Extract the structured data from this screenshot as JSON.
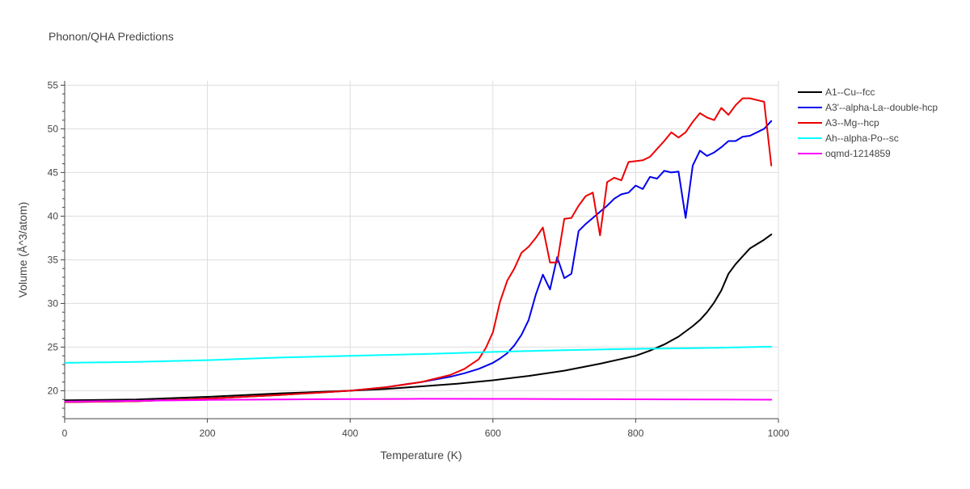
{
  "chart_data": {
    "type": "line",
    "title": "Phonon/QHA Predictions",
    "xlabel": "Temperature (K)",
    "ylabel": "Volume (Å^3/atom)",
    "xlim": [
      0,
      1000
    ],
    "ylim": [
      16.8,
      55.5
    ],
    "xticks": [
      0,
      200,
      400,
      600,
      800,
      1000
    ],
    "yticks": [
      20,
      25,
      30,
      35,
      40,
      45,
      50,
      55
    ],
    "grid": true,
    "legend_position": "top-right",
    "series": [
      {
        "name": "A1--Cu--fcc",
        "color": "#000000",
        "x": [
          0,
          100,
          200,
          300,
          400,
          450,
          500,
          550,
          600,
          650,
          700,
          750,
          800,
          820,
          840,
          860,
          870,
          880,
          890,
          900,
          910,
          920,
          930,
          940,
          950,
          960,
          970,
          980,
          990
        ],
        "y": [
          18.9,
          19.0,
          19.3,
          19.7,
          20.0,
          20.2,
          20.5,
          20.8,
          21.2,
          21.7,
          22.3,
          23.1,
          24.0,
          24.6,
          25.3,
          26.2,
          26.8,
          27.4,
          28.1,
          29.0,
          30.1,
          31.5,
          33.4,
          34.5,
          35.4,
          36.3,
          36.8,
          37.3,
          37.9
        ]
      },
      {
        "name": "A3'--alpha-La--double-hcp",
        "color": "#0000ee",
        "x": [
          0,
          100,
          200,
          300,
          400,
          450,
          500,
          540,
          560,
          580,
          600,
          610,
          620,
          630,
          640,
          650,
          660,
          670,
          680,
          690,
          700,
          710,
          720,
          730,
          740,
          750,
          760,
          770,
          780,
          790,
          800,
          810,
          820,
          830,
          840,
          850,
          860,
          870,
          880,
          890,
          900,
          910,
          920,
          930,
          940,
          950,
          960,
          970,
          980,
          990
        ],
        "y": [
          18.7,
          18.8,
          19.1,
          19.5,
          20.0,
          20.4,
          21.0,
          21.6,
          22.0,
          22.5,
          23.2,
          23.7,
          24.3,
          25.2,
          26.4,
          28.1,
          31.0,
          33.3,
          31.6,
          35.3,
          32.9,
          33.4,
          38.3,
          39.1,
          39.8,
          40.5,
          41.2,
          42.0,
          42.5,
          42.7,
          43.5,
          43.1,
          44.5,
          44.3,
          45.2,
          45.0,
          45.1,
          39.8,
          45.8,
          47.5,
          46.9,
          47.3,
          47.9,
          48.6,
          48.6,
          49.1,
          49.2,
          49.6,
          50.0,
          50.9
        ]
      },
      {
        "name": "A3--Mg--hcp",
        "color": "#ee0000",
        "x": [
          0,
          100,
          200,
          300,
          400,
          450,
          500,
          540,
          560,
          580,
          590,
          600,
          610,
          620,
          630,
          640,
          650,
          660,
          670,
          680,
          690,
          700,
          710,
          720,
          730,
          740,
          750,
          760,
          770,
          780,
          790,
          800,
          810,
          820,
          830,
          840,
          850,
          860,
          870,
          880,
          890,
          900,
          910,
          920,
          930,
          940,
          950,
          960,
          970,
          980,
          990
        ],
        "y": [
          18.7,
          18.8,
          19.1,
          19.5,
          20.0,
          20.4,
          21.0,
          21.8,
          22.5,
          23.6,
          24.9,
          26.7,
          30.2,
          32.6,
          34.0,
          35.8,
          36.5,
          37.5,
          38.7,
          34.7,
          34.7,
          39.7,
          39.8,
          41.2,
          42.3,
          42.7,
          37.8,
          43.9,
          44.4,
          44.1,
          46.2,
          46.3,
          46.4,
          46.8,
          47.7,
          48.6,
          49.6,
          49.0,
          49.6,
          50.8,
          51.8,
          51.3,
          51.0,
          52.4,
          51.6,
          52.7,
          53.5,
          53.5,
          53.3,
          53.1,
          45.8
        ]
      },
      {
        "name": "Ah--alpha-Po--sc",
        "color": "#00ffff",
        "x": [
          0,
          100,
          200,
          300,
          400,
          500,
          600,
          700,
          800,
          900,
          990
        ],
        "y": [
          23.2,
          23.3,
          23.5,
          23.8,
          24.0,
          24.2,
          24.45,
          24.65,
          24.8,
          24.9,
          25.05
        ]
      },
      {
        "name": "oqmd-1214859",
        "color": "#ff00ff",
        "x": [
          0,
          100,
          200,
          300,
          400,
          500,
          600,
          700,
          800,
          900,
          990
        ],
        "y": [
          18.75,
          18.85,
          18.95,
          19.0,
          19.05,
          19.08,
          19.07,
          19.05,
          19.02,
          19.0,
          18.98
        ]
      }
    ]
  }
}
